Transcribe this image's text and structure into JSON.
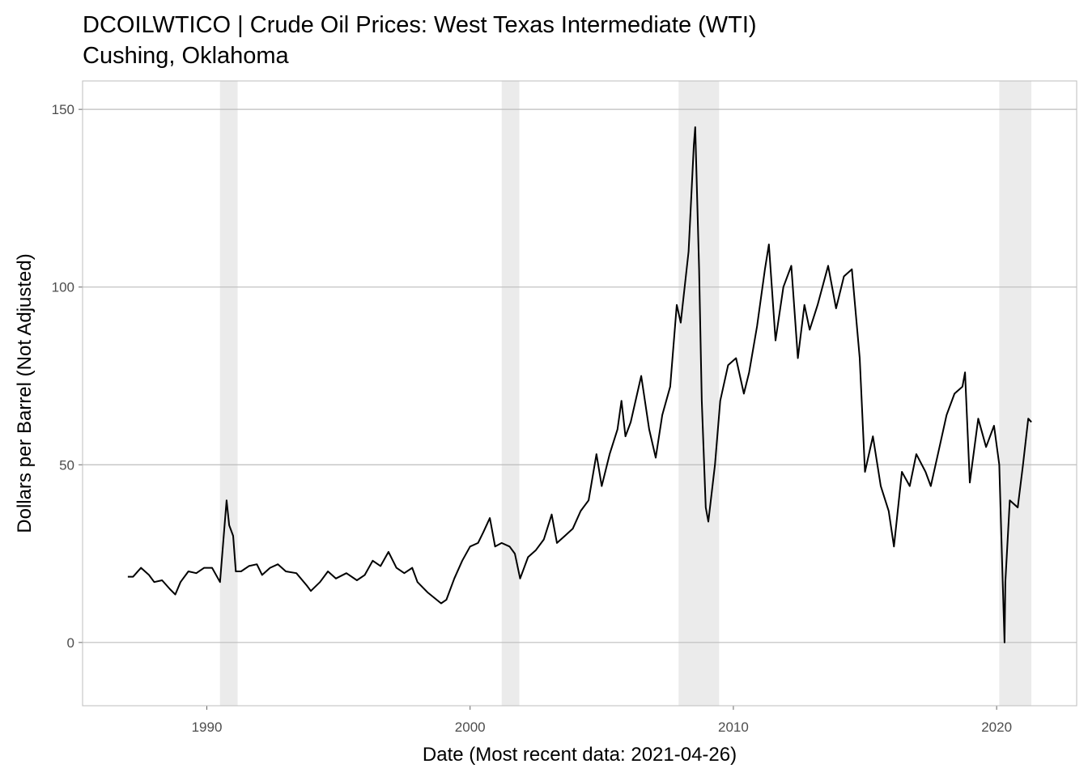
{
  "chart_data": {
    "type": "line",
    "title": "DCOILWTICO | Crude Oil Prices: West Texas Intermediate (WTI)",
    "subtitle": "Cushing, Oklahoma",
    "x_label": "Date (Most recent data: 2021-04-26)",
    "y_label": "Dollars per Barrel (Not Adjusted)",
    "recession_bands": [
      [
        1990.5,
        1991.17
      ],
      [
        2001.2,
        2001.87
      ],
      [
        2007.92,
        2009.46
      ],
      [
        2020.1,
        2021.32
      ]
    ],
    "x": [
      1987.0,
      1987.2,
      1987.5,
      1987.8,
      1988.0,
      1988.3,
      1988.6,
      1988.8,
      1989.0,
      1989.3,
      1989.6,
      1989.9,
      1990.2,
      1990.5,
      1990.75,
      1990.85,
      1991.0,
      1991.1,
      1991.3,
      1991.6,
      1991.9,
      1992.1,
      1992.4,
      1992.7,
      1993.0,
      1993.4,
      1993.8,
      1993.95,
      1994.3,
      1994.6,
      1994.9,
      1995.3,
      1995.7,
      1996.0,
      1996.3,
      1996.6,
      1996.9,
      1997.2,
      1997.5,
      1997.8,
      1998.0,
      1998.4,
      1998.9,
      1999.1,
      1999.4,
      1999.7,
      2000.0,
      2000.3,
      2000.5,
      2000.75,
      2000.95,
      2001.2,
      2001.5,
      2001.7,
      2001.9,
      2002.2,
      2002.5,
      2002.8,
      2003.1,
      2003.3,
      2003.6,
      2003.9,
      2004.2,
      2004.5,
      2004.8,
      2005.0,
      2005.3,
      2005.6,
      2005.75,
      2005.9,
      2006.1,
      2006.5,
      2006.8,
      2007.05,
      2007.3,
      2007.6,
      2007.85,
      2008.0,
      2008.3,
      2008.5,
      2008.55,
      2008.7,
      2008.8,
      2008.95,
      2009.05,
      2009.3,
      2009.5,
      2009.8,
      2010.1,
      2010.4,
      2010.6,
      2010.9,
      2011.2,
      2011.35,
      2011.6,
      2011.9,
      2012.2,
      2012.45,
      2012.7,
      2012.9,
      2013.2,
      2013.6,
      2013.9,
      2014.2,
      2014.5,
      2014.8,
      2015.0,
      2015.3,
      2015.6,
      2015.9,
      2016.1,
      2016.4,
      2016.7,
      2016.95,
      2017.3,
      2017.5,
      2017.8,
      2018.1,
      2018.4,
      2018.7,
      2018.8,
      2018.98,
      2019.3,
      2019.6,
      2019.9,
      2020.1,
      2020.2,
      2020.3,
      2020.33,
      2020.5,
      2020.8,
      2021.0,
      2021.2,
      2021.32
    ],
    "series": [
      {
        "name": "DCOILWTICO",
        "color": "#000000",
        "values": [
          18.5,
          18.5,
          21,
          19,
          17,
          17.5,
          15,
          13.5,
          17,
          20,
          19.5,
          21,
          21,
          17,
          40,
          33,
          30,
          20,
          20,
          21.5,
          22,
          19,
          21,
          22,
          20,
          19.5,
          16,
          14.5,
          17,
          20,
          18,
          19.5,
          17.5,
          19,
          23,
          21.5,
          25.5,
          21,
          19.5,
          21,
          17,
          14,
          11,
          12,
          18,
          23,
          27,
          28,
          31,
          35,
          27,
          28,
          27,
          25,
          18,
          24,
          26,
          29,
          36,
          28,
          30,
          32,
          37,
          40,
          53,
          44,
          53,
          60,
          68,
          58,
          62,
          75,
          60,
          52,
          64,
          72,
          95,
          90,
          110,
          140,
          145,
          105,
          68,
          38,
          34,
          50,
          68,
          78,
          80,
          70,
          76,
          89,
          105,
          112,
          85,
          100,
          106,
          80,
          95,
          88,
          95,
          106,
          94,
          103,
          105,
          80,
          48,
          58,
          44,
          37,
          27,
          48,
          44,
          53,
          48,
          44,
          54,
          64,
          70,
          72,
          76,
          45,
          63,
          55,
          61,
          50,
          25,
          0,
          17,
          40,
          38,
          50,
          63,
          62
        ]
      }
    ],
    "xlim": [
      1985.28,
      2023.04
    ],
    "xticks": [
      1990,
      2000,
      2010,
      2020
    ],
    "ylim": [
      -17.8,
      158
    ],
    "yticks": [
      0,
      50,
      100,
      150
    ],
    "grid": true
  }
}
